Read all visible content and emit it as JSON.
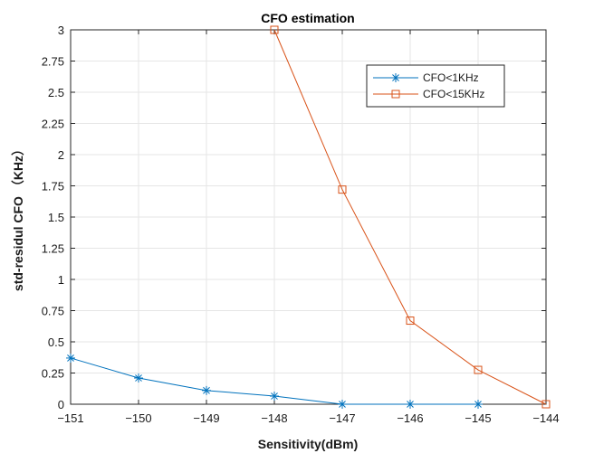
{
  "chart_data": {
    "type": "line",
    "title": "CFO estimation",
    "xlabel": "Sensitivity(dBm)",
    "ylabel": "std-residul CFO （KHz）",
    "xlim": [
      -151,
      -144
    ],
    "ylim": [
      0,
      3
    ],
    "xticks": [
      -151,
      -150,
      -149,
      -148,
      -147,
      -146,
      -145,
      -144
    ],
    "yticks": [
      0,
      0.25,
      0.5,
      0.75,
      1,
      1.25,
      1.5,
      1.75,
      2,
      2.25,
      2.5,
      2.75,
      3
    ],
    "xtick_labels": [
      "−151",
      "−150",
      "−149",
      "−148",
      "−147",
      "−146",
      "−145",
      "−144"
    ],
    "ytick_labels": [
      "0",
      "0.25",
      "0.5",
      "0.75",
      "1",
      "1.25",
      "1.5",
      "1.75",
      "2",
      "2.25",
      "2.5",
      "2.75",
      "3"
    ],
    "grid": true,
    "legend_position": "top-right",
    "series": [
      {
        "name": "CFO<1KHz",
        "marker": "asterisk",
        "color": "#0072BD",
        "x": [
          -151,
          -150,
          -149,
          -148,
          -147,
          -146,
          -145
        ],
        "y": [
          0.37,
          0.21,
          0.11,
          0.065,
          0.0,
          0.0,
          0.0
        ]
      },
      {
        "name": "CFO<15KHz",
        "marker": "square",
        "color": "#D95319",
        "x": [
          -148,
          -147,
          -146,
          -145,
          -144
        ],
        "y": [
          3.0,
          1.72,
          0.67,
          0.275,
          0.0
        ]
      }
    ]
  }
}
